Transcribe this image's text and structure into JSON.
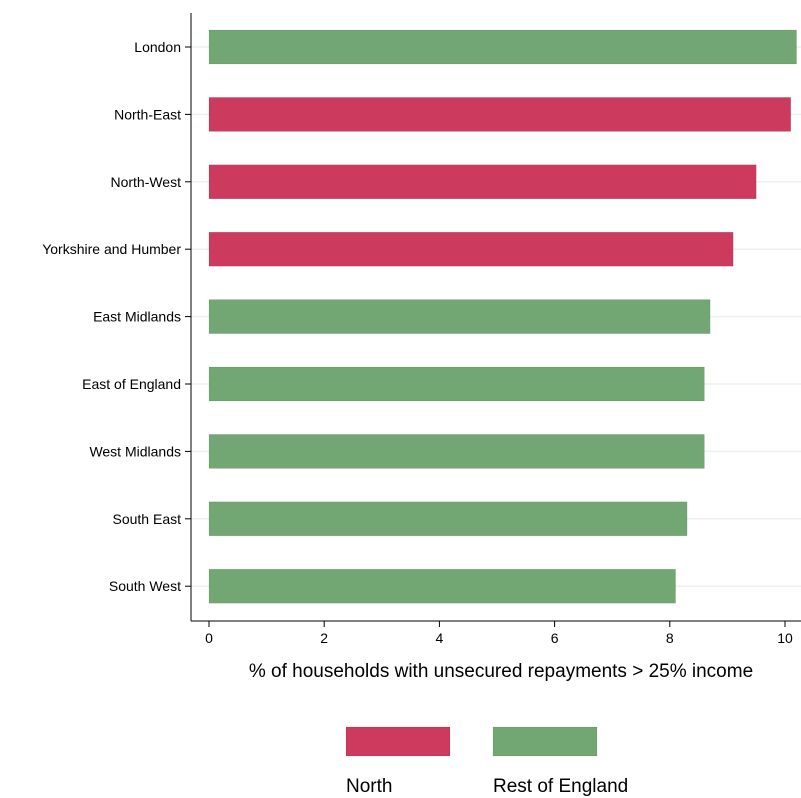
{
  "chart_data": {
    "type": "bar",
    "orientation": "horizontal",
    "categories": [
      "London",
      "North-East",
      "North-West",
      "Yorkshire and Humber",
      "East Midlands",
      "East of England",
      "West Midlands",
      "South East",
      "South West"
    ],
    "values": [
      10.2,
      10.1,
      9.5,
      9.1,
      8.7,
      8.6,
      8.6,
      8.3,
      8.1
    ],
    "groups": [
      "Rest of England",
      "North",
      "North",
      "North",
      "Rest of England",
      "Rest of England",
      "Rest of England",
      "Rest of England",
      "Rest of England"
    ],
    "legend": [
      {
        "name": "North",
        "color": "#cc3a5e"
      },
      {
        "name": "Rest of England",
        "color": "#72a773"
      }
    ],
    "xlabel": "% of  households with unsecured repayments > 25% income",
    "ylabel": "",
    "xlim": [
      0,
      10.2
    ],
    "xticks": [
      "0",
      "2",
      "4",
      "6",
      "8",
      "10"
    ],
    "grid": "horizontal",
    "legend_position": "bottom"
  }
}
